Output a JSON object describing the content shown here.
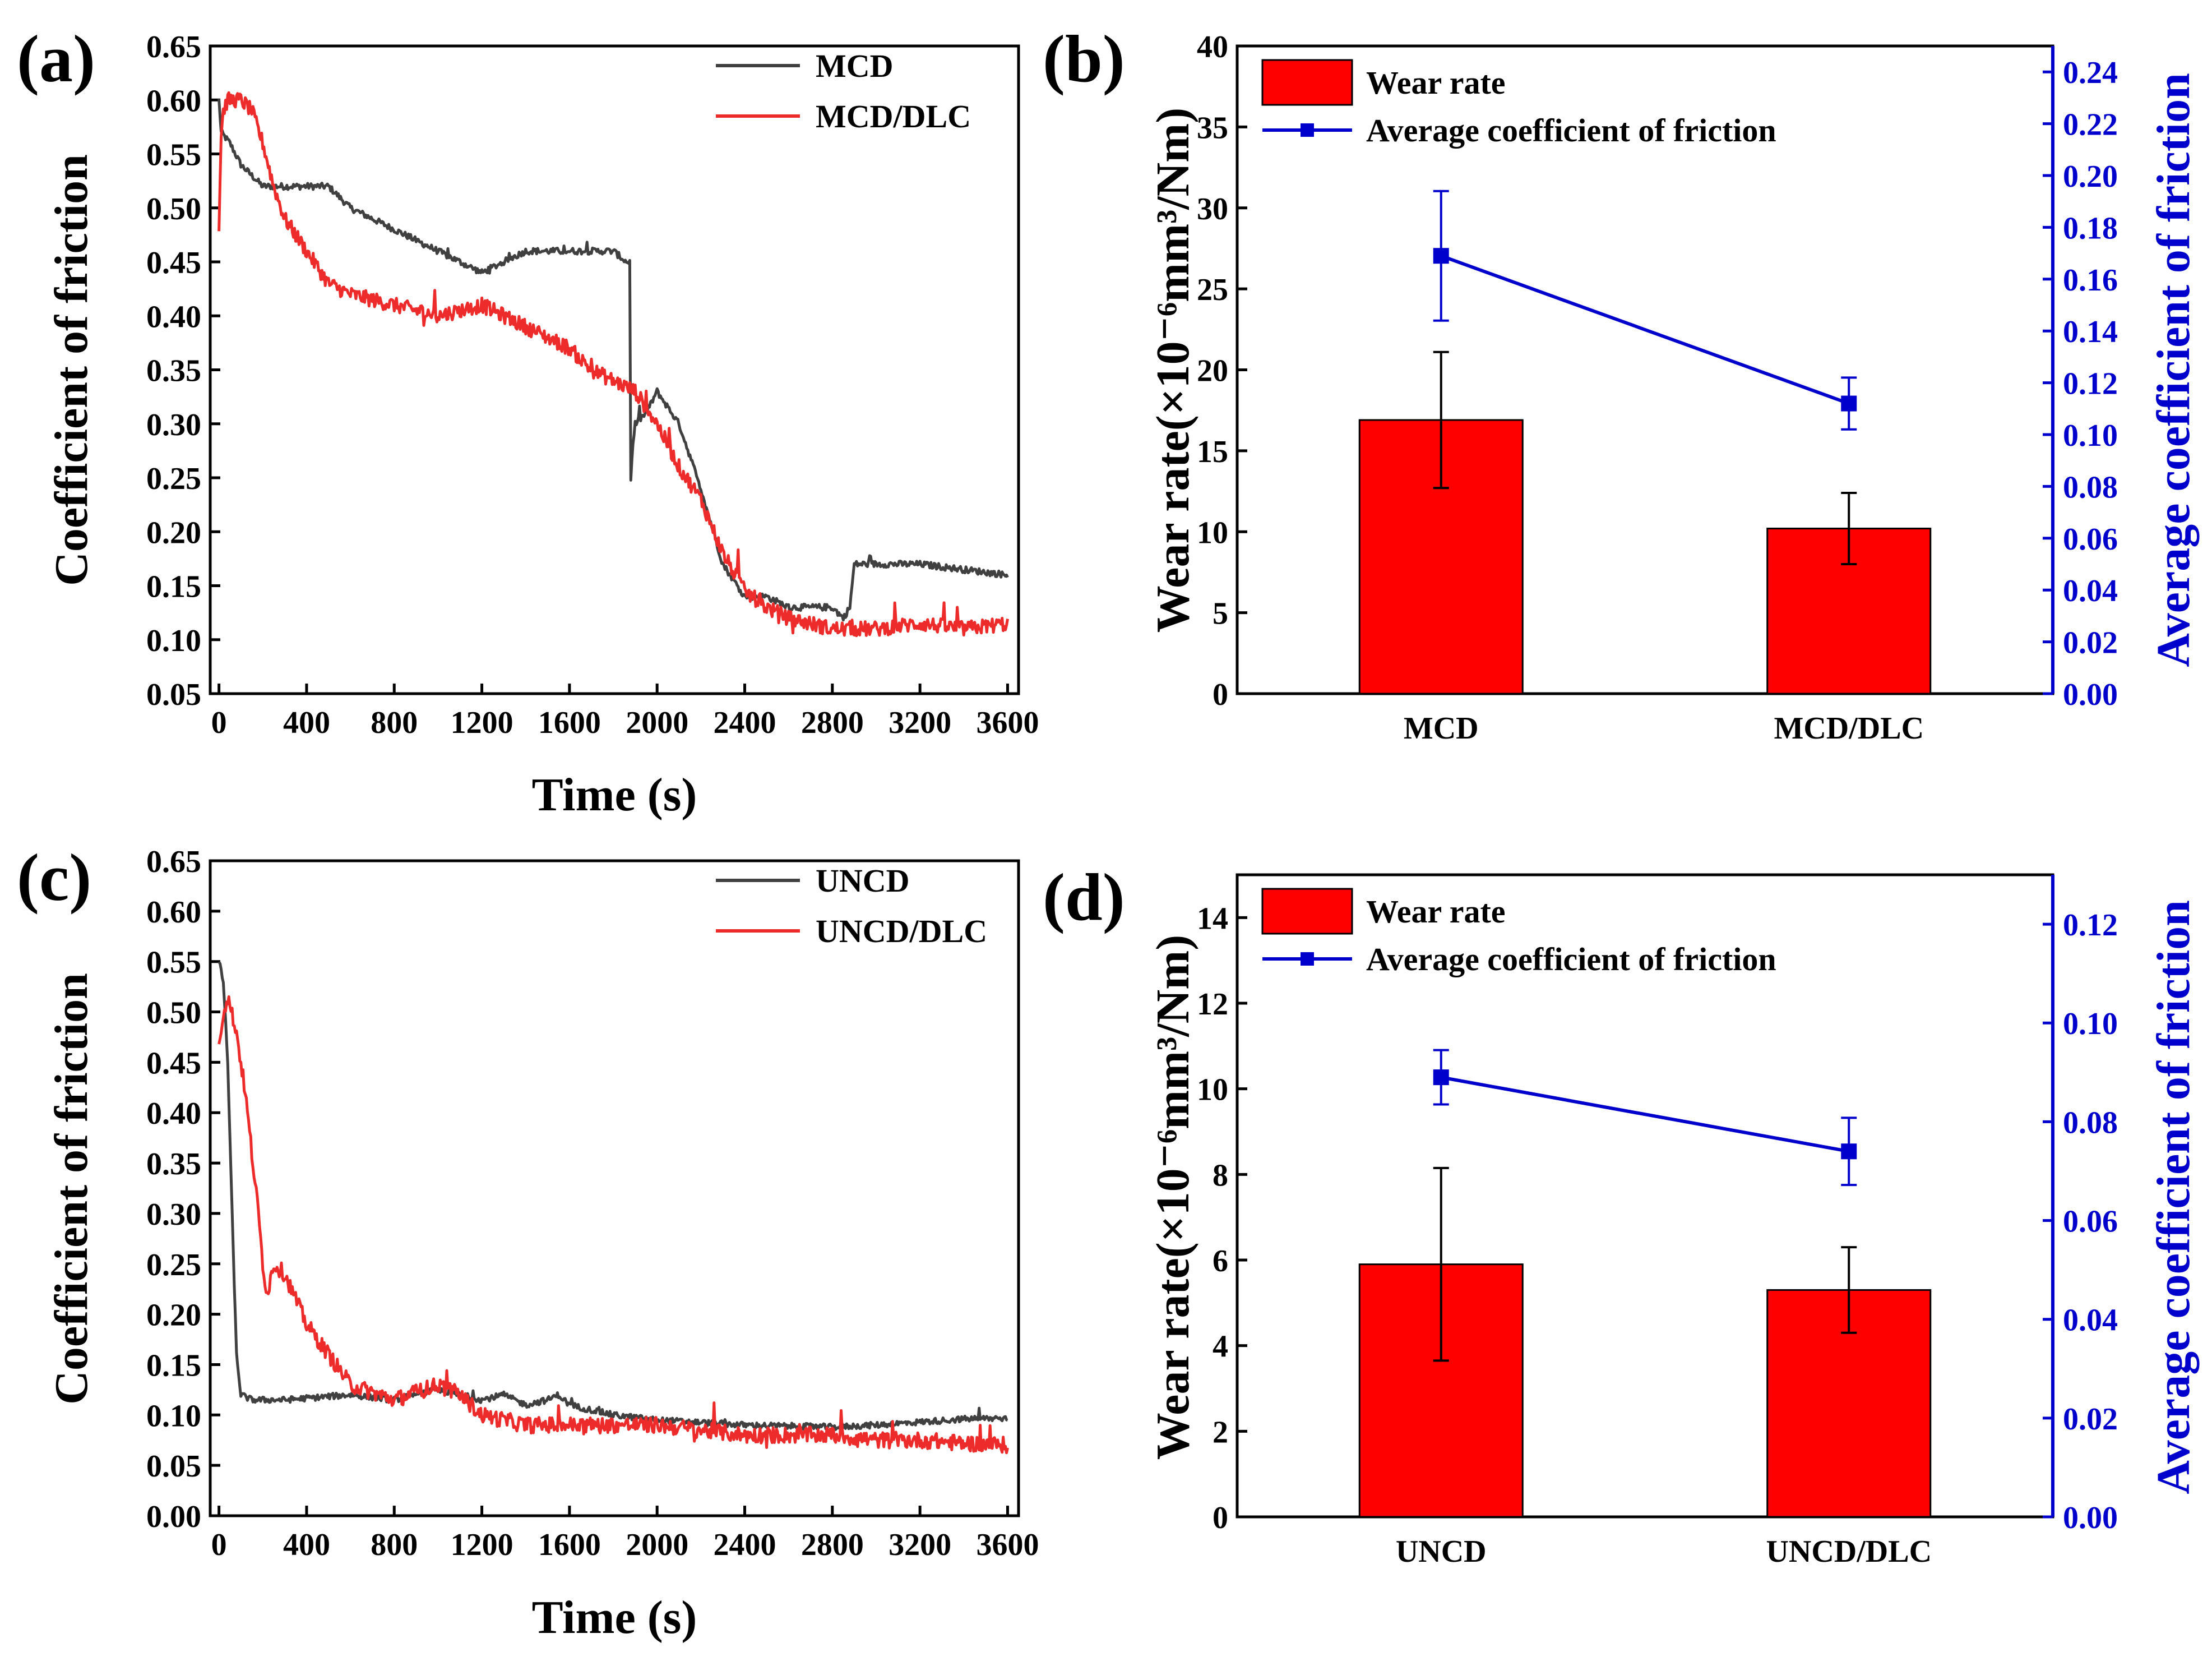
{
  "colors": {
    "black": "#000000",
    "dark": "#404040",
    "red": "#ee2b2b",
    "bar": "#ff0000",
    "blue": "#0000cc"
  },
  "chart_data": [
    {
      "id": "a",
      "type": "line",
      "panel_label": "(a)",
      "xlabel": "Time (s)",
      "ylabel": "Coefficient of friction",
      "xlim": [
        -40,
        3650
      ],
      "ylim": [
        0.05,
        0.65
      ],
      "xticks": [
        "0",
        "400",
        "800",
        "1200",
        "1600",
        "2000",
        "2400",
        "2800",
        "3200",
        "3600"
      ],
      "yticks": [
        "0.05",
        "0.10",
        "0.15",
        "0.20",
        "0.25",
        "0.30",
        "0.35",
        "0.40",
        "0.45",
        "0.50",
        "0.55",
        "0.60",
        "0.65"
      ],
      "legend_position": "top-right",
      "series": [
        {
          "name": "MCD",
          "color": "#404040",
          "noise": 0.003,
          "x": [
            0,
            10,
            50,
            100,
            200,
            300,
            400,
            500,
            600,
            800,
            1000,
            1100,
            1200,
            1300,
            1400,
            1500,
            1600,
            1700,
            1800,
            1860,
            1875,
            1880,
            1890,
            1900,
            1950,
            2000,
            2100,
            2200,
            2300,
            2400,
            2500,
            2600,
            2700,
            2800,
            2850,
            2880,
            2900,
            3000,
            3200,
            3400,
            3600
          ],
          "y": [
            0.6,
            0.57,
            0.56,
            0.54,
            0.52,
            0.52,
            0.52,
            0.52,
            0.5,
            0.48,
            0.46,
            0.45,
            0.44,
            0.45,
            0.46,
            0.46,
            0.46,
            0.46,
            0.46,
            0.45,
            0.45,
            0.25,
            0.28,
            0.3,
            0.31,
            0.33,
            0.3,
            0.24,
            0.17,
            0.14,
            0.14,
            0.13,
            0.13,
            0.13,
            0.12,
            0.13,
            0.17,
            0.17,
            0.17,
            0.165,
            0.16
          ]
        },
        {
          "name": "MCD/DLC",
          "color": "#ee2b2b",
          "noise": 0.007,
          "x": [
            0,
            10,
            20,
            40,
            60,
            100,
            150,
            200,
            250,
            300,
            400,
            500,
            600,
            800,
            1000,
            1200,
            1300,
            1400,
            1500,
            1600,
            1700,
            1800,
            1900,
            2000,
            2100,
            2200,
            2300,
            2400,
            2500,
            2600,
            2800,
            3000,
            3200,
            3400,
            3600
          ],
          "y": [
            0.48,
            0.57,
            0.59,
            0.6,
            0.6,
            0.6,
            0.59,
            0.56,
            0.52,
            0.49,
            0.46,
            0.43,
            0.42,
            0.41,
            0.4,
            0.41,
            0.4,
            0.39,
            0.38,
            0.37,
            0.35,
            0.34,
            0.33,
            0.3,
            0.26,
            0.23,
            0.18,
            0.145,
            0.13,
            0.12,
            0.11,
            0.11,
            0.115,
            0.11,
            0.115
          ]
        }
      ]
    },
    {
      "id": "b",
      "type": "bar",
      "panel_label": "(b)",
      "categories": [
        "MCD",
        "MCD/DLC"
      ],
      "ylabel": "Wear rate(×10⁻⁶mm³/Nm)",
      "y2label": "Average coefficient of friction",
      "ylim": [
        0,
        40
      ],
      "y2lim": [
        0,
        0.25
      ],
      "yticks": [
        "0",
        "5",
        "10",
        "15",
        "20",
        "25",
        "30",
        "35",
        "40"
      ],
      "y2ticks": [
        "0.00",
        "0.02",
        "0.04",
        "0.06",
        "0.08",
        "0.10",
        "0.12",
        "0.14",
        "0.16",
        "0.18",
        "0.20",
        "0.22",
        "0.24"
      ],
      "series": [
        {
          "name": "Wear rate",
          "kind": "bar",
          "values": [
            16.9,
            10.2
          ],
          "errors": [
            4.2,
            2.2
          ]
        },
        {
          "name": "Average coefficient of friction",
          "kind": "line",
          "values": [
            0.169,
            0.112
          ],
          "errors": [
            0.025,
            0.01
          ]
        }
      ]
    },
    {
      "id": "c",
      "type": "line",
      "panel_label": "(c)",
      "xlabel": "Time (s)",
      "ylabel": "Coefficient of friction",
      "xlim": [
        -40,
        3650
      ],
      "ylim": [
        0.0,
        0.65
      ],
      "xticks": [
        "0",
        "400",
        "800",
        "1200",
        "1600",
        "2000",
        "2400",
        "2800",
        "3200",
        "3600"
      ],
      "yticks": [
        "0.00",
        "0.05",
        "0.10",
        "0.15",
        "0.20",
        "0.25",
        "0.30",
        "0.35",
        "0.40",
        "0.45",
        "0.50",
        "0.55",
        "0.60",
        "0.65"
      ],
      "legend_position": "top-right",
      "series": [
        {
          "name": "UNCD",
          "color": "#404040",
          "noise": 0.003,
          "x": [
            0,
            20,
            40,
            60,
            80,
            100,
            150,
            300,
            600,
            800,
            1000,
            1100,
            1200,
            1300,
            1400,
            1500,
            1550,
            1600,
            1800,
            2000,
            2400,
            2800,
            3000,
            3200,
            3400,
            3600
          ],
          "y": [
            0.55,
            0.53,
            0.45,
            0.3,
            0.16,
            0.12,
            0.115,
            0.115,
            0.12,
            0.115,
            0.125,
            0.12,
            0.115,
            0.12,
            0.11,
            0.115,
            0.12,
            0.11,
            0.1,
            0.095,
            0.09,
            0.088,
            0.09,
            0.093,
            0.096,
            0.097
          ]
        },
        {
          "name": "UNCD/DLC",
          "color": "#ee2b2b",
          "noise": 0.008,
          "x": [
            0,
            20,
            40,
            80,
            120,
            150,
            180,
            200,
            220,
            250,
            300,
            400,
            500,
            600,
            800,
            1000,
            1100,
            1200,
            1400,
            1600,
            1800,
            2000,
            2400,
            2800,
            3000,
            3200,
            3400,
            3600
          ],
          "y": [
            0.47,
            0.5,
            0.515,
            0.48,
            0.42,
            0.36,
            0.3,
            0.25,
            0.22,
            0.25,
            0.24,
            0.19,
            0.16,
            0.13,
            0.115,
            0.13,
            0.12,
            0.1,
            0.09,
            0.09,
            0.09,
            0.09,
            0.08,
            0.08,
            0.075,
            0.075,
            0.072,
            0.07
          ]
        }
      ]
    },
    {
      "id": "d",
      "type": "bar",
      "panel_label": "(d)",
      "categories": [
        "UNCD",
        "UNCD/DLC"
      ],
      "ylabel": "Wear rate(×10⁻⁶mm³/Nm)",
      "y2label": "Average coefficient of friction",
      "ylim": [
        0,
        15
      ],
      "y2lim": [
        0,
        0.13
      ],
      "yticks": [
        "0",
        "2",
        "4",
        "6",
        "8",
        "10",
        "12",
        "14"
      ],
      "y2ticks": [
        "0.00",
        "0.02",
        "0.04",
        "0.06",
        "0.08",
        "0.10",
        "0.12"
      ],
      "series": [
        {
          "name": "Wear rate",
          "kind": "bar",
          "values": [
            5.9,
            5.3
          ],
          "errors": [
            2.25,
            1.0
          ]
        },
        {
          "name": "Average coefficient of friction",
          "kind": "line",
          "values": [
            0.089,
            0.074
          ],
          "errors": [
            0.0055,
            0.0068
          ]
        }
      ]
    }
  ]
}
